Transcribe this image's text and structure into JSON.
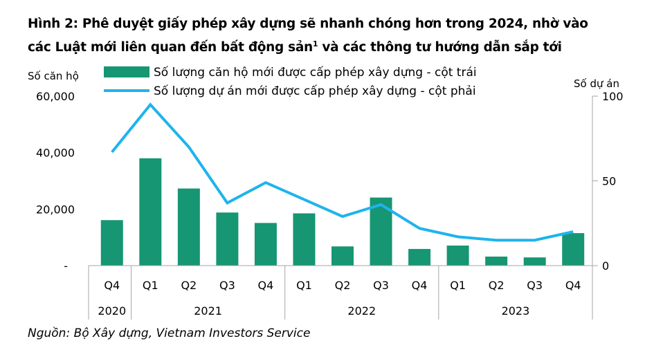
{
  "title_line1": "Hình 2: Phê duyệt giấy phép xây dựng sẽ nhanh chóng hơn trong 2024, nhờ vào",
  "title_line2_pre": "các Luật mới liên quan đến bất động sản",
  "title_sup": "1",
  "title_line2_post": " và các thông tư hướng dẫn sắp tới",
  "source": "Nguồn: Bộ Xây dựng, Vietnam Investors Service",
  "colors": {
    "bar": "#169673",
    "line": "#1EB4EC",
    "axis": "#a6a6a6"
  },
  "chart_data": {
    "type": "bar+line",
    "ylabel_left": "Số căn hộ",
    "ylabel_right": "Số dự án",
    "ylim_left": [
      0,
      60000
    ],
    "ylim_right": [
      0,
      100
    ],
    "yticks_left": [
      "-",
      "20,000",
      "40,000",
      "60,000"
    ],
    "yticks_right": [
      "0",
      "50",
      "100"
    ],
    "categories": [
      "Q4",
      "Q1",
      "Q2",
      "Q3",
      "Q4",
      "Q1",
      "Q2",
      "Q3",
      "Q4",
      "Q1",
      "Q2",
      "Q3",
      "Q4"
    ],
    "years": [
      {
        "label": "2020",
        "span": 1
      },
      {
        "label": "2021",
        "span": 4
      },
      {
        "label": "2022",
        "span": 4
      },
      {
        "label": "2023",
        "span": 4
      }
    ],
    "legend_placement": "top",
    "grid": false,
    "series": [
      {
        "name": "Số lượng căn hộ mới được cấp phép xây dựng - cột trái",
        "type": "bar",
        "axis": "left",
        "values": [
          16100,
          38000,
          27300,
          18800,
          15100,
          18500,
          6800,
          24100,
          5900,
          7100,
          3200,
          2900,
          11500
        ]
      },
      {
        "name": "Số lượng dự án mới được cấp phép xây dựng - cột phải",
        "type": "line",
        "axis": "right",
        "values": [
          67,
          95,
          70,
          37,
          49,
          39,
          29,
          36,
          22,
          17,
          15,
          15,
          20
        ]
      }
    ]
  }
}
